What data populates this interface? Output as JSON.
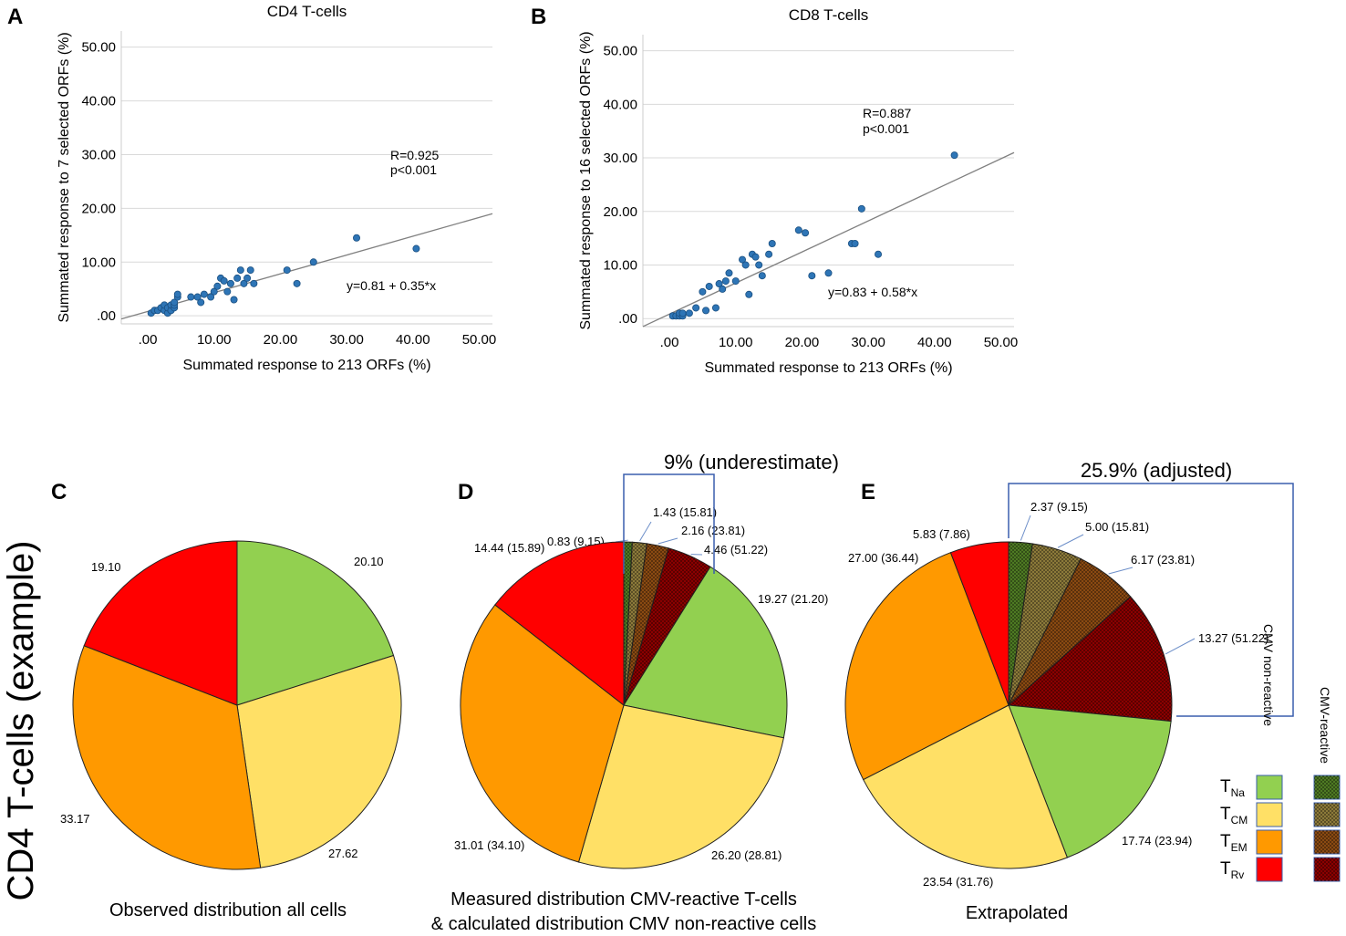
{
  "colors": {
    "naive": "#92d050",
    "cm": "#ffe066",
    "em": "#ff9900",
    "rv": "#ff0000",
    "naive_react": "#4e7a23",
    "cm_react": "#8c7a3a",
    "em_react": "#8a4a12",
    "rv_react": "#8b0000",
    "scatter_point": "#2e75b6",
    "bracket": "#3a5fad"
  },
  "figure": {
    "side_title": "CD4 T-cells (example)",
    "legend": {
      "header_nonreactive": "CMV non-reactive",
      "header_reactive": "CMV-reactive",
      "rows": [
        {
          "main": "T",
          "sub": "Na"
        },
        {
          "main": "T",
          "sub": "CM"
        },
        {
          "main": "T",
          "sub": "EM"
        },
        {
          "main": "T",
          "sub": "Rv"
        }
      ]
    }
  },
  "chart_data": [
    {
      "panel": "A",
      "type": "scatter",
      "title": "CD4 T-cells",
      "xlabel": "Summated response to 213 ORFs (%)",
      "ylabel": "Summated response to 7 selected ORFs (%)",
      "xlim": [
        -4,
        52
      ],
      "ylim": [
        -1.5,
        53
      ],
      "xticks": [
        ".00",
        "10.00",
        "20.00",
        "30.00",
        "40.00",
        "50.00"
      ],
      "yticks": [
        ".00",
        "10.00",
        "20.00",
        "30.00",
        "40.00",
        "50.00"
      ],
      "grid": true,
      "stats_r": "R=0.925",
      "stats_p": "p<0.001",
      "equation": "y=0.81 + 0.35*x",
      "fit": {
        "intercept": 0.81,
        "slope": 0.35
      },
      "points": [
        [
          0.5,
          0.5
        ],
        [
          1,
          1
        ],
        [
          1.5,
          1
        ],
        [
          2,
          1.5
        ],
        [
          2.5,
          1
        ],
        [
          2.5,
          2
        ],
        [
          3,
          0.5
        ],
        [
          3,
          1.5
        ],
        [
          3.5,
          1
        ],
        [
          3.5,
          2
        ],
        [
          4,
          1.5
        ],
        [
          4,
          2
        ],
        [
          4,
          2.5
        ],
        [
          4.5,
          3.5
        ],
        [
          4.5,
          4
        ],
        [
          6.5,
          3.5
        ],
        [
          7.5,
          3.5
        ],
        [
          8,
          2.5
        ],
        [
          8.5,
          4
        ],
        [
          9.5,
          3.5
        ],
        [
          10,
          4.5
        ],
        [
          10.5,
          5.5
        ],
        [
          11,
          7
        ],
        [
          11.5,
          6.5
        ],
        [
          12,
          4.5
        ],
        [
          12.5,
          6
        ],
        [
          13,
          3
        ],
        [
          13.5,
          7
        ],
        [
          14,
          8.5
        ],
        [
          14.5,
          6
        ],
        [
          15,
          7
        ],
        [
          15.5,
          8.5
        ],
        [
          16,
          6
        ],
        [
          21,
          8.5
        ],
        [
          22.5,
          6
        ],
        [
          25,
          10
        ],
        [
          31.5,
          14.5
        ],
        [
          40.5,
          12.5
        ]
      ]
    },
    {
      "panel": "B",
      "type": "scatter",
      "title": "CD8 T-cells",
      "xlabel": "Summated response to 213 ORFs (%)",
      "ylabel": "Summated response to 16 selected ORFs (%)",
      "xlim": [
        -4,
        52
      ],
      "ylim": [
        -1.5,
        53
      ],
      "xticks": [
        ".00",
        "10.00",
        "20.00",
        "30.00",
        "40.00",
        "50.00"
      ],
      "yticks": [
        ".00",
        "10.00",
        "20.00",
        "30.00",
        "40.00",
        "50.00"
      ],
      "grid": true,
      "stats_r": "R=0.887",
      "stats_p": "p<0.001",
      "equation": "y=0.83 + 0.58*x",
      "fit": {
        "intercept": 0.83,
        "slope": 0.58
      },
      "points": [
        [
          0.5,
          0.5
        ],
        [
          1,
          0.5
        ],
        [
          1.5,
          0.5
        ],
        [
          1.5,
          1
        ],
        [
          2,
          0.5
        ],
        [
          2,
          1
        ],
        [
          3,
          1
        ],
        [
          4,
          2
        ],
        [
          5,
          5
        ],
        [
          5.5,
          1.5
        ],
        [
          6,
          6
        ],
        [
          7,
          2
        ],
        [
          7.5,
          6.5
        ],
        [
          8,
          5.5
        ],
        [
          8.5,
          7
        ],
        [
          9,
          8.5
        ],
        [
          10,
          7
        ],
        [
          11,
          11
        ],
        [
          11.5,
          10
        ],
        [
          12,
          4.5
        ],
        [
          12.5,
          12
        ],
        [
          13,
          11.5
        ],
        [
          13.5,
          10
        ],
        [
          14,
          8
        ],
        [
          15,
          12
        ],
        [
          15.5,
          14
        ],
        [
          19.5,
          16.5
        ],
        [
          20.5,
          16
        ],
        [
          21.5,
          8
        ],
        [
          24,
          8.5
        ],
        [
          27.5,
          14
        ],
        [
          28,
          14
        ],
        [
          29,
          20.5
        ],
        [
          31.5,
          12
        ],
        [
          43,
          30.5
        ]
      ]
    },
    {
      "panel": "C",
      "type": "pie",
      "title": "Observed distribution all cells",
      "slices": [
        {
          "name": "TNa",
          "value": 20.1,
          "label": "20.10",
          "color": "naive"
        },
        {
          "name": "TCM",
          "value": 27.62,
          "label": "27.62",
          "color": "cm"
        },
        {
          "name": "TEM",
          "value": 33.17,
          "label": "33.17",
          "color": "em"
        },
        {
          "name": "TRv",
          "value": 19.1,
          "label": "19.10",
          "color": "rv"
        }
      ]
    },
    {
      "panel": "D",
      "type": "pie",
      "title_line1": "Measured distribution CMV-reactive T-cells",
      "title_line2": "& calculated distribution CMV non-reactive cells",
      "bracket_label": "9% (underestimate)",
      "slices": [
        {
          "name": "TNa CMV-reactive",
          "value": 0.83,
          "label": "0.83 (9.15)",
          "color": "naive_react",
          "hatch": true
        },
        {
          "name": "TCM CMV-reactive",
          "value": 1.43,
          "label": "1.43 (15.81)",
          "color": "cm_react",
          "hatch": true
        },
        {
          "name": "TEM CMV-reactive",
          "value": 2.16,
          "label": "2.16 (23.81)",
          "color": "em_react",
          "hatch": true
        },
        {
          "name": "TRv CMV-reactive",
          "value": 4.46,
          "label": "4.46 (51.22)",
          "color": "rv_react",
          "hatch": true
        },
        {
          "name": "TNa",
          "value": 19.27,
          "label": "19.27 (21.20)",
          "color": "naive"
        },
        {
          "name": "TCM",
          "value": 26.2,
          "label": "26.20 (28.81)",
          "color": "cm"
        },
        {
          "name": "TEM",
          "value": 31.01,
          "label": "31.01 (34.10)",
          "color": "em"
        },
        {
          "name": "TRv",
          "value": 14.44,
          "label": "14.44 (15.89)",
          "color": "rv"
        }
      ]
    },
    {
      "panel": "E",
      "type": "pie",
      "title": "Extrapolated",
      "bracket_label": "25.9% (adjusted)",
      "slices": [
        {
          "name": "TNa CMV-reactive",
          "value": 2.37,
          "label": "2.37 (9.15)",
          "color": "naive_react",
          "hatch": true
        },
        {
          "name": "TCM CMV-reactive",
          "value": 5.0,
          "label": "5.00 (15.81)",
          "color": "cm_react",
          "hatch": true
        },
        {
          "name": "TEM CMV-reactive",
          "value": 6.17,
          "label": "6.17 (23.81)",
          "color": "em_react",
          "hatch": true
        },
        {
          "name": "TRv CMV-reactive",
          "value": 13.27,
          "label": "13.27 (51.22)",
          "color": "rv_react",
          "hatch": true
        },
        {
          "name": "TNa",
          "value": 17.74,
          "label": "17.74 (23.94)",
          "color": "naive"
        },
        {
          "name": "TCM",
          "value": 23.54,
          "label": "23.54 (31.76)",
          "color": "cm"
        },
        {
          "name": "TEM",
          "value": 27.0,
          "label": "27.00 (36.44)",
          "color": "em"
        },
        {
          "name": "TRv",
          "value": 5.83,
          "label": "5.83 (7.86)",
          "color": "rv"
        }
      ]
    }
  ]
}
